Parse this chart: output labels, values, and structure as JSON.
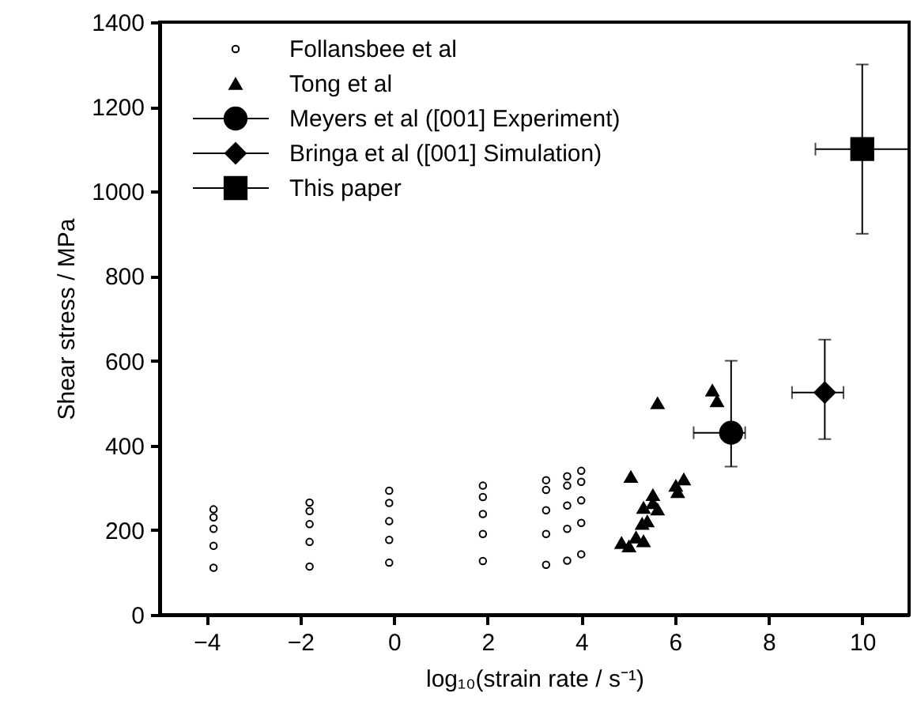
{
  "chart_data": {
    "type": "scatter",
    "xlabel": "log₁₀(strain rate / s⁻¹)",
    "ylabel": "Shear stress / MPa",
    "xlim": [
      -5,
      11
    ],
    "xticks": [
      -4,
      -2,
      0,
      2,
      4,
      6,
      8,
      10
    ],
    "ylim": [
      0,
      1400
    ],
    "yticks": [
      0,
      200,
      400,
      600,
      800,
      1000,
      1200,
      1400
    ],
    "grid": false,
    "legend": "top left",
    "series": [
      {
        "name": "Follansbee et al",
        "color": "#000000",
        "marker": "circle",
        "x": [
          -3.85,
          -3.85,
          -3.85,
          -3.85,
          -3.85,
          -1.8,
          -1.8,
          -1.8,
          -1.8,
          -1.8,
          -0.1,
          -0.1,
          -0.1,
          -0.1,
          -0.1,
          1.9,
          1.9,
          1.9,
          1.9,
          1.9,
          3.25,
          3.25,
          3.25,
          3.25,
          3.25,
          3.7,
          3.7,
          3.7,
          3.7,
          3.7,
          4.0,
          4.0,
          4.0,
          4.0,
          4.0
        ],
        "values": [
          249,
          230,
          203,
          163,
          111,
          265,
          245,
          214,
          172,
          114,
          293,
          264,
          221,
          177,
          123,
          305,
          278,
          238,
          191,
          127,
          318,
          295,
          247,
          191,
          118,
          327,
          305,
          258,
          203,
          128,
          340,
          314,
          270,
          217,
          143
        ]
      },
      {
        "name": "Tong et al",
        "color": "#000000",
        "marker": "triangle",
        "x": [
          5.63,
          6.8,
          6.9,
          5.06,
          6.02,
          6.19,
          6.06,
          5.53,
          5.33,
          5.63,
          5.53,
          5.41,
          5.3,
          5.17,
          5.33,
          5.02,
          4.86
        ],
        "values": [
          500,
          530,
          505,
          326,
          305,
          320,
          290,
          283,
          253,
          249,
          264,
          221,
          215,
          183,
          174,
          162,
          170
        ]
      },
      {
        "name": "Meyers et al      ([001] Experiment)",
        "color": "#000000",
        "marker": "circle",
        "x": [
          7.2
        ],
        "values": [
          430
        ],
        "errors": [
          [
            350,
            600
          ]
        ],
        "xerrors": [
          [
            6.4,
            7.5
          ]
        ]
      },
      {
        "name": "Bringa et al      ([001] Simulation)",
        "color": "#000000",
        "marker": "diamond",
        "x": [
          9.2
        ],
        "values": [
          525
        ],
        "errors": [
          [
            415,
            650
          ]
        ],
        "xerrors": [
          [
            8.5,
            9.6
          ]
        ]
      },
      {
        "name": "This paper",
        "color": "#000000",
        "marker": "square",
        "x": [
          10
        ],
        "values": [
          1100
        ],
        "errors": [
          [
            900,
            1300
          ]
        ],
        "xerrors": [
          [
            9.0,
            11.0
          ]
        ]
      }
    ]
  }
}
